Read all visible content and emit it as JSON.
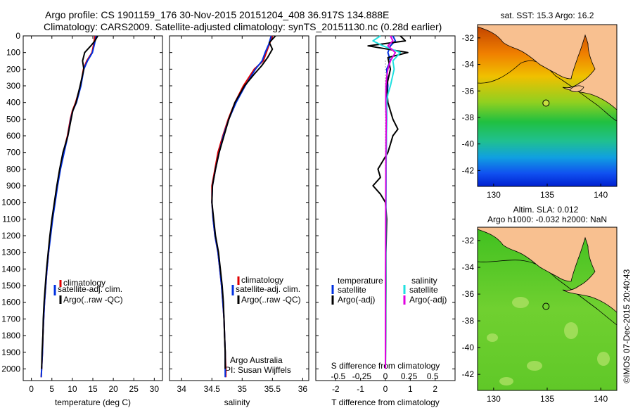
{
  "header": {
    "line1": "Argo profile: CS 1901159_176 30-Nov-2015 20151204_408 36.917S 134.888E",
    "line2": "Climatology: CARS2009. Satellite-adjusted climatology: synTS_20151130.nc (0.28d earlier)"
  },
  "side_label": "©IMOS 07-Dec-2015 20:40:43",
  "colors": {
    "climatology": "#e00000",
    "satellite": "#0030e0",
    "argo": "#000000",
    "satellite_s": "#20e0e0",
    "argo_s": "#e000e0",
    "land": "#f8c090"
  },
  "chart_data": [
    {
      "id": "temperature-profile",
      "type": "line",
      "xlabel": "temperature (deg C)",
      "ylabel": "",
      "xlim": [
        -2,
        32
      ],
      "ylim": [
        2070,
        0
      ],
      "xticks": [
        0,
        5,
        10,
        15,
        20,
        25,
        30
      ],
      "yticks": [
        0,
        100,
        200,
        300,
        400,
        500,
        600,
        700,
        800,
        900,
        1000,
        1100,
        1200,
        1300,
        1400,
        1500,
        1600,
        1700,
        1800,
        1900,
        2000
      ],
      "legend": [
        "climatology",
        "satellite-adj. clim.",
        "Argo(..raw -QC)"
      ],
      "legend_position": "lower-center",
      "series": [
        {
          "name": "climatology",
          "color": "#e00000",
          "points": [
            [
              15.5,
              0
            ],
            [
              15.2,
              50
            ],
            [
              14.8,
              100
            ],
            [
              13.5,
              150
            ],
            [
              12.7,
              200
            ],
            [
              12,
              300
            ],
            [
              10.8,
              400
            ],
            [
              10,
              450
            ],
            [
              9.5,
              500
            ],
            [
              8.8,
              600
            ],
            [
              7.8,
              700
            ],
            [
              7,
              800
            ],
            [
              6.3,
              900
            ],
            [
              5.7,
              1000
            ],
            [
              5.1,
              1100
            ],
            [
              4.6,
              1200
            ],
            [
              4.2,
              1300
            ],
            [
              3.8,
              1400
            ],
            [
              3.5,
              1500
            ],
            [
              3.2,
              1600
            ],
            [
              3,
              1700
            ],
            [
              2.8,
              1800
            ],
            [
              2.7,
              1900
            ],
            [
              2.5,
              2000
            ],
            [
              2.4,
              2050
            ]
          ]
        },
        {
          "name": "satellite-adj. clim.",
          "color": "#0030e0",
          "points": [
            [
              15.8,
              0
            ],
            [
              15.4,
              50
            ],
            [
              14.9,
              100
            ],
            [
              13.7,
              150
            ],
            [
              12.8,
              200
            ],
            [
              12.1,
              300
            ],
            [
              11,
              400
            ],
            [
              10.1,
              450
            ],
            [
              9.6,
              500
            ],
            [
              8.9,
              600
            ],
            [
              8,
              700
            ],
            [
              7.1,
              800
            ],
            [
              6.4,
              900
            ],
            [
              5.8,
              1000
            ],
            [
              5.2,
              1100
            ],
            [
              4.7,
              1200
            ],
            [
              4.2,
              1300
            ],
            [
              3.8,
              1400
            ],
            [
              3.5,
              1500
            ],
            [
              3.2,
              1600
            ],
            [
              3,
              1700
            ],
            [
              2.8,
              1800
            ],
            [
              2.7,
              1900
            ],
            [
              2.5,
              2000
            ],
            [
              2.4,
              2050
            ]
          ]
        },
        {
          "name": "Argo(..raw -QC)",
          "color": "#000000",
          "points": [
            [
              16.2,
              0
            ],
            [
              15.5,
              30
            ],
            [
              14.5,
              60
            ],
            [
              13,
              100
            ],
            [
              12.5,
              150
            ],
            [
              12.8,
              200
            ],
            [
              11.9,
              300
            ],
            [
              10.9,
              400
            ],
            [
              10.1,
              450
            ],
            [
              9.7,
              500
            ],
            [
              8.9,
              600
            ],
            [
              7.7,
              700
            ],
            [
              6.9,
              800
            ],
            [
              6.2,
              900
            ],
            [
              5.6,
              1000
            ],
            [
              5,
              1100
            ],
            [
              4.5,
              1200
            ],
            [
              4.1,
              1300
            ],
            [
              3.7,
              1400
            ],
            [
              3.4,
              1500
            ],
            [
              3.1,
              1600
            ],
            [
              2.9,
              1700
            ],
            [
              2.8,
              1800
            ],
            [
              2.6,
              1900
            ],
            [
              2.5,
              2000
            ]
          ]
        }
      ]
    },
    {
      "id": "salinity-profile",
      "type": "line",
      "xlabel": "salinity",
      "ylabel": "",
      "xlim": [
        33.8,
        36.1
      ],
      "ylim": [
        2070,
        0
      ],
      "xticks": [
        34,
        34.5,
        35,
        35.5,
        36
      ],
      "legend": [
        "climatology",
        "satellite-adj. clim.",
        "Argo(..raw -QC)"
      ],
      "legend_position": "lower-center",
      "annotations": [
        "Argo Australia",
        "PI: Susan Wijffels"
      ],
      "series": [
        {
          "name": "climatology",
          "color": "#e00000",
          "points": [
            [
              35.5,
              0
            ],
            [
              35.45,
              50
            ],
            [
              35.4,
              100
            ],
            [
              35.35,
              150
            ],
            [
              35.2,
              200
            ],
            [
              35.02,
              300
            ],
            [
              34.88,
              400
            ],
            [
              34.77,
              500
            ],
            [
              34.68,
              600
            ],
            [
              34.6,
              700
            ],
            [
              34.55,
              800
            ],
            [
              34.5,
              900
            ],
            [
              34.5,
              1000
            ],
            [
              34.52,
              1100
            ],
            [
              34.55,
              1200
            ],
            [
              34.6,
              1300
            ],
            [
              34.63,
              1400
            ],
            [
              34.66,
              1500
            ],
            [
              34.68,
              1600
            ],
            [
              34.7,
              1700
            ],
            [
              34.71,
              1800
            ],
            [
              34.72,
              1900
            ],
            [
              34.73,
              2000
            ],
            [
              34.73,
              2050
            ]
          ]
        },
        {
          "name": "satellite-adj. clim.",
          "color": "#0030e0",
          "points": [
            [
              35.48,
              0
            ],
            [
              35.44,
              50
            ],
            [
              35.38,
              100
            ],
            [
              35.33,
              150
            ],
            [
              35.22,
              200
            ],
            [
              35.05,
              300
            ],
            [
              34.9,
              400
            ],
            [
              34.78,
              500
            ],
            [
              34.69,
              600
            ],
            [
              34.62,
              700
            ],
            [
              34.56,
              800
            ],
            [
              34.51,
              900
            ],
            [
              34.5,
              1000
            ],
            [
              34.52,
              1100
            ],
            [
              34.55,
              1200
            ],
            [
              34.6,
              1300
            ],
            [
              34.63,
              1400
            ],
            [
              34.66,
              1500
            ],
            [
              34.68,
              1600
            ],
            [
              34.7,
              1700
            ],
            [
              34.71,
              1800
            ],
            [
              34.72,
              1900
            ],
            [
              34.72,
              2000
            ],
            [
              34.72,
              2050
            ]
          ]
        },
        {
          "name": "Argo(..raw -QC)",
          "color": "#000000",
          "points": [
            [
              35.55,
              0
            ],
            [
              35.45,
              40
            ],
            [
              35.5,
              80
            ],
            [
              35.42,
              130
            ],
            [
              35.32,
              180
            ],
            [
              35.2,
              230
            ],
            [
              35.04,
              300
            ],
            [
              34.88,
              400
            ],
            [
              34.78,
              500
            ],
            [
              34.7,
              600
            ],
            [
              34.62,
              700
            ],
            [
              34.56,
              800
            ],
            [
              34.51,
              900
            ],
            [
              34.5,
              1000
            ],
            [
              34.53,
              1100
            ],
            [
              34.56,
              1200
            ],
            [
              34.61,
              1300
            ],
            [
              34.64,
              1400
            ],
            [
              34.67,
              1500
            ],
            [
              34.69,
              1600
            ],
            [
              34.7,
              1700
            ],
            [
              34.71,
              1800
            ],
            [
              34.72,
              1900
            ],
            [
              34.72,
              2000
            ]
          ]
        }
      ]
    },
    {
      "id": "difference-profile",
      "type": "line",
      "xlabel": "T difference from climatology",
      "top_xlabel": "S difference from climatology",
      "ylabel": "",
      "xlim": [
        -2.8,
        2.8
      ],
      "ylim": [
        2070,
        0
      ],
      "xticks": [
        -2,
        -1,
        0,
        1,
        2
      ],
      "top_tick_labels": [
        {
          "x": -1.9,
          "label": "-0.5"
        },
        {
          "x": -0.95,
          "label": "-0.25"
        },
        {
          "x": 0,
          "label": "0"
        },
        {
          "x": 0.95,
          "label": "0.25"
        },
        {
          "x": 1.9,
          "label": "0.5"
        }
      ],
      "legend_headers": [
        "temperature",
        "salinity"
      ],
      "legend": [
        "satellite",
        "Argo(-adj)",
        "satellite",
        "Argo(-adj)"
      ],
      "legend_position": "lower-center",
      "series": [
        {
          "name": "satellite",
          "color": "#0030e0",
          "points": [
            [
              0.3,
              0
            ],
            [
              0.4,
              30
            ],
            [
              0.2,
              60
            ],
            [
              0.1,
              100
            ],
            [
              0.2,
              150
            ],
            [
              0.05,
              200
            ],
            [
              0.1,
              300
            ],
            [
              0.05,
              400
            ],
            [
              0.05,
              500
            ],
            [
              0.03,
              700
            ],
            [
              0.02,
              1000
            ],
            [
              0.01,
              1500
            ],
            [
              0,
              2000
            ]
          ]
        },
        {
          "name": "Argo(-adj)",
          "color": "#000000",
          "points": [
            [
              0.6,
              0
            ],
            [
              0.8,
              30
            ],
            [
              -0.7,
              60
            ],
            [
              0.9,
              100
            ],
            [
              0.1,
              130
            ],
            [
              0.2,
              200
            ],
            [
              0.05,
              300
            ],
            [
              0.1,
              400
            ],
            [
              0.3,
              500
            ],
            [
              0.5,
              560
            ],
            [
              0.3,
              600
            ],
            [
              0.2,
              650
            ],
            [
              0.1,
              700
            ],
            [
              -0.3,
              800
            ],
            [
              -0.2,
              850
            ],
            [
              -0.5,
              900
            ],
            [
              -0.2,
              950
            ],
            [
              0,
              1000
            ],
            [
              0.05,
              1100
            ],
            [
              0.02,
              1300
            ],
            [
              0.02,
              1500
            ],
            [
              0,
              2000
            ]
          ]
        },
        {
          "name": "satellite",
          "color": "#20e0e0",
          "points": [
            [
              -0.2,
              0
            ],
            [
              -0.5,
              30
            ],
            [
              -0.1,
              60
            ],
            [
              0.6,
              100
            ],
            [
              0.3,
              150
            ],
            [
              0.35,
              200
            ],
            [
              0.2,
              300
            ],
            [
              0.1,
              350
            ],
            [
              0.05,
              400
            ],
            [
              0.05,
              500
            ],
            [
              0.03,
              700
            ],
            [
              0.02,
              1000
            ],
            [
              0.01,
              1500
            ],
            [
              0,
              2000
            ]
          ]
        },
        {
          "name": "Argo(-adj)",
          "color": "#e000e0",
          "points": [
            [
              0.2,
              0
            ],
            [
              0.3,
              30
            ],
            [
              0.1,
              60
            ],
            [
              0.4,
              100
            ],
            [
              0.2,
              150
            ],
            [
              0.1,
              200
            ],
            [
              0.05,
              250
            ],
            [
              0.02,
              300
            ],
            [
              0.01,
              400
            ],
            [
              0.03,
              500
            ],
            [
              0.02,
              700
            ],
            [
              0.01,
              1000
            ],
            [
              0,
              1500
            ],
            [
              0,
              2000
            ]
          ]
        }
      ]
    }
  ],
  "maps": [
    {
      "id": "sst-map",
      "title": "sat. SST: 15.3 Argo: 16.2",
      "xticks": [
        "130",
        "135",
        "140"
      ],
      "yticks": [
        "-32",
        "-34",
        "-36",
        "-38",
        "-40",
        "-42"
      ],
      "lon_range": [
        128.5,
        141.5
      ],
      "lat_range": [
        -31,
        -43.2
      ],
      "marker": {
        "lon": 134.888,
        "lat": -36.917,
        "fill": "#c8e040"
      }
    },
    {
      "id": "sla-map",
      "title_line1": "Altim. SLA: 0.012",
      "title_line2": "Argo h1000: -0.032 h2000: NaN",
      "xticks": [
        "130",
        "135",
        "140"
      ],
      "yticks": [
        "-32",
        "-34",
        "-36",
        "-38",
        "-40",
        "-42"
      ],
      "lon_range": [
        128.5,
        141.5
      ],
      "lat_range": [
        -31,
        -43.2
      ],
      "marker": {
        "lon": 134.888,
        "lat": -36.917,
        "fill": "none"
      }
    }
  ]
}
